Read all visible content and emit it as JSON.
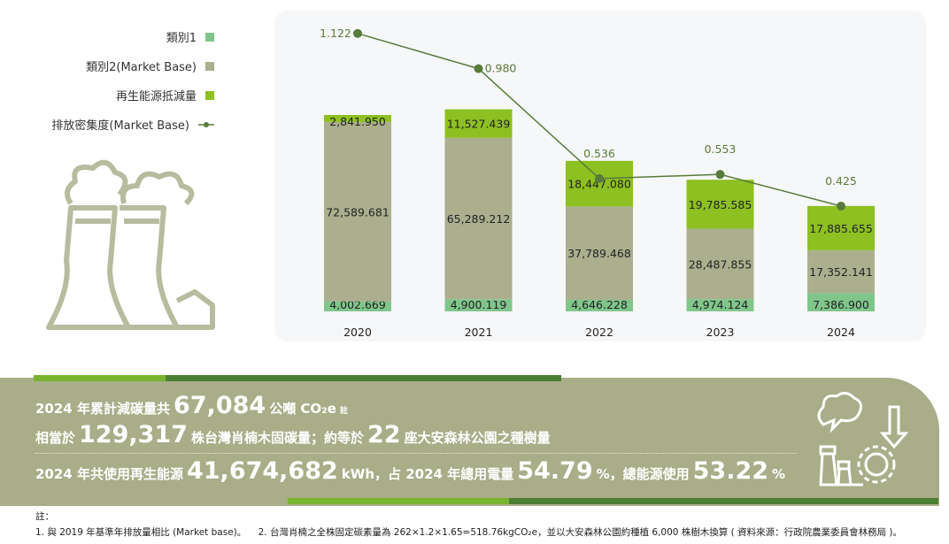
{
  "chart_data": {
    "type": "bar",
    "stacked": true,
    "categories": [
      "2020",
      "2021",
      "2022",
      "2023",
      "2024"
    ],
    "series": [
      {
        "name": "類別1",
        "color": "#80c68b",
        "values": [
          4002.669,
          4900.119,
          4646.228,
          4974.124,
          7386.9
        ],
        "labels": [
          "4,002.669",
          "4,900.119",
          "4,646.228",
          "4,974.124",
          "7,386.900"
        ]
      },
      {
        "name": "類別2(Market Base)",
        "color": "#abaf8e",
        "values": [
          72589.681,
          65289.212,
          37789.468,
          28487.855,
          17352.141
        ],
        "labels": [
          "72,589.681",
          "65,289.212",
          "37,789.468",
          "28,487.855",
          "17,352.141"
        ]
      },
      {
        "name": "再生能源抵減量",
        "color": "#8dc021",
        "values": [
          2841.95,
          11527.439,
          18447.08,
          19785.585,
          17885.655
        ],
        "labels": [
          "2,841.950",
          "11,527.439",
          "18,447.080",
          "19,785.585",
          "17,885.655"
        ]
      }
    ],
    "line_series": {
      "name": "排放密集度(Market Base)",
      "color": "#587a3a",
      "values": [
        1.122,
        0.98,
        0.536,
        0.553,
        0.425
      ],
      "labels": [
        "1.122",
        "0.980",
        "0.536",
        "0.553",
        "0.425"
      ]
    },
    "legend_position": "left"
  },
  "summary": {
    "l1a": "2024 年累計減碳量共",
    "l1n": "67,084",
    "l1b": "公噸 CO₂e",
    "l1sup": "註",
    "l2a": "相當於",
    "l2n": "129,317",
    "l2b": "株台灣肖楠木固碳量；約等於",
    "l2n2": "22",
    "l2c": "座大安森林公園之種樹量",
    "l3a": "2024 年共使用再生能源",
    "l3n": "41,674,682",
    "l3b": "kWh，占 2024 年總用電量",
    "l3n2": "54.79",
    "l3p": "%，總能源使用",
    "l3n3": "53.22",
    "l3p2": "%"
  },
  "notes": {
    "title": "註：",
    "n1": "1. 與 2019 年基準年排放量相比 (Market base)。",
    "n2": "2. 台灣肖楠之全株固定碳素量為 262×1.2×1.65=518.76kgCO₂e，並以大安森林公園約種植 6,000 株樹木換算 ( 資料來源：行政院農業委員會林務局 )。"
  }
}
